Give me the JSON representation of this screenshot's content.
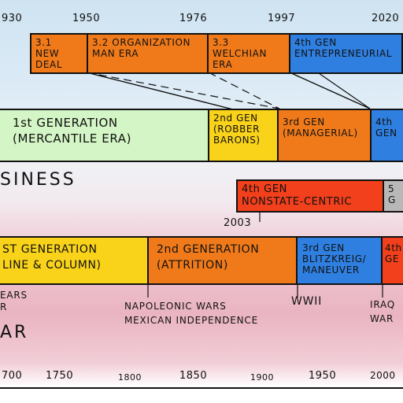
{
  "business": {
    "label": "SINESS",
    "top_years": [
      "930",
      "1950",
      "1976",
      "1997",
      "2020"
    ],
    "segments": [
      {
        "text": "3.1\nNEW\nDEAL",
        "color": "#f07a1a"
      },
      {
        "text": "3.2 ORGANIZATION\n MAN ERA",
        "color": "#f07a1a"
      },
      {
        "text": "3.3 WELCHIAN\nERA",
        "color": "#f07a1a"
      },
      {
        "text": "4th GEN\nENTREPRENEURIAL",
        "color": "#2f7fe0"
      }
    ],
    "generations": [
      {
        "text": "1st GENERATION\n(MERCANTILE ERA)",
        "color": "#d4f5c5"
      },
      {
        "text": "2nd GEN\n(ROBBER\nBARONS)",
        "color": "#f9d21a"
      },
      {
        "text": "3rd GEN\n(MANAGERIAL)",
        "color": "#f07a1a"
      },
      {
        "text": "4th\nGEN",
        "color": "#2f7fe0"
      }
    ]
  },
  "war": {
    "label": "AR",
    "upper_row": [
      {
        "text": "4th GEN\nNONSTATE-CENTRIC",
        "color": "#f2401c"
      },
      {
        "text": "5\nG",
        "color": "#b8b8b8"
      }
    ],
    "upper_year": "2003",
    "generations": [
      {
        "text": "ST GENERATION\nLINE & COLUMN)",
        "color": "#f9d21a"
      },
      {
        "text": "2nd GENERATION\n(ATTRITION)",
        "color": "#f07a1a"
      },
      {
        "text": "3rd GEN\nBLITZKREIG/\nMANEUVER",
        "color": "#2f7fe0"
      },
      {
        "text": "4th\nGE",
        "color": "#f2401c"
      }
    ],
    "captions": [
      {
        "text": "EARS\nR"
      },
      {
        "text": "NAPOLEONIC WARS\nMEXICAN INDEPENDENCE"
      },
      {
        "text": "WWII"
      },
      {
        "text": "IRAQ\nWAR"
      }
    ],
    "bottom_years": [
      "700",
      "1750",
      "1800",
      "1850",
      "1900",
      "1950",
      "2000"
    ]
  }
}
